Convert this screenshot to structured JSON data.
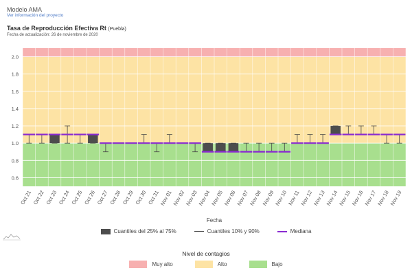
{
  "header": {
    "app_title": "Modelo AMA",
    "project_link": "Ver información del proyecto",
    "chart_title": "Tasa de Reproducción Efectiva Rt",
    "chart_region": "(Puebla)",
    "update_date": "Fecha de actualización: 26 de noviembre de 2020"
  },
  "chart_data": {
    "type": "boxplot",
    "title": "Tasa de Reproducción Efectiva Rt",
    "xlabel": "Fecha",
    "ylabel": "",
    "ylim": [
      0.5,
      2.1
    ],
    "yticks": [
      0.6,
      0.8,
      1.0,
      1.2,
      1.4,
      1.6,
      1.8,
      2.0
    ],
    "grid": true,
    "categories": [
      "Oct 21",
      "Oct 22",
      "Oct 23",
      "Oct 24",
      "Oct 25",
      "Oct 26",
      "Oct 27",
      "Oct 28",
      "Oct 29",
      "Oct 30",
      "Oct 31",
      "Nov 01",
      "Nov 02",
      "Nov 03",
      "Nov 04",
      "Nov 05",
      "Nov 06",
      "Nov 07",
      "Nov 08",
      "Nov 09",
      "Nov 10",
      "Nov 11",
      "Nov 12",
      "Nov 13",
      "Nov 14",
      "Nov 15",
      "Nov 16",
      "Nov 17",
      "Nov 18",
      "Nov 19"
    ],
    "median": [
      1.1,
      1.1,
      1.1,
      1.1,
      1.1,
      1.1,
      1.0,
      1.0,
      1.0,
      1.0,
      1.0,
      1.0,
      1.0,
      1.0,
      0.9,
      0.9,
      0.9,
      0.9,
      0.9,
      0.9,
      0.9,
      1.0,
      1.0,
      1.0,
      1.1,
      1.1,
      1.1,
      1.1,
      1.1,
      1.1
    ],
    "q25": [
      1.1,
      1.1,
      1.0,
      1.1,
      1.1,
      1.0,
      1.0,
      1.0,
      1.0,
      1.0,
      1.0,
      1.0,
      1.0,
      1.0,
      0.9,
      0.9,
      0.9,
      0.9,
      0.9,
      0.9,
      0.9,
      1.0,
      1.0,
      1.0,
      1.1,
      1.1,
      1.1,
      1.1,
      1.1,
      1.1
    ],
    "q75": [
      1.1,
      1.1,
      1.1,
      1.1,
      1.1,
      1.1,
      1.0,
      1.0,
      1.0,
      1.0,
      1.0,
      1.0,
      1.0,
      1.0,
      1.0,
      1.0,
      1.0,
      0.9,
      0.9,
      0.9,
      0.9,
      1.0,
      1.0,
      1.0,
      1.2,
      1.1,
      1.1,
      1.1,
      1.1,
      1.1
    ],
    "p10": [
      1.0,
      1.0,
      1.0,
      1.0,
      1.0,
      1.0,
      0.9,
      1.0,
      1.0,
      1.0,
      0.9,
      1.0,
      1.0,
      0.9,
      0.9,
      0.9,
      0.9,
      0.9,
      0.9,
      0.9,
      0.9,
      1.0,
      1.0,
      1.0,
      1.1,
      1.1,
      1.1,
      1.1,
      1.0,
      1.0
    ],
    "p90": [
      1.1,
      1.1,
      1.1,
      1.2,
      1.1,
      1.1,
      1.0,
      1.0,
      1.0,
      1.1,
      1.0,
      1.1,
      1.0,
      1.0,
      1.0,
      1.0,
      1.0,
      1.0,
      1.0,
      1.0,
      1.0,
      1.1,
      1.1,
      1.1,
      1.2,
      1.2,
      1.2,
      1.2,
      1.1,
      1.1
    ],
    "bands": [
      {
        "name": "Bajo",
        "from": 0.5,
        "to": 1.0,
        "color": "#a8df8e"
      },
      {
        "name": "Alto",
        "from": 1.0,
        "to": 2.0,
        "color": "#fde3a4"
      },
      {
        "name": "Muy alto",
        "from": 2.0,
        "to": 2.1,
        "color": "#f7b0b0"
      }
    ],
    "legend_position": "bottom",
    "colors": {
      "box": "#4d4d4d",
      "whisker": "#444444",
      "median": "#8a2bd1",
      "grid": "#ffffff",
      "axis_text": "#555555"
    }
  },
  "legend": {
    "box": "Cuantiles del 25% al 75%",
    "whisker": "Cuantiles 10% y 90%",
    "median": "Mediana"
  },
  "levels": {
    "title": "Nivel de contagios",
    "items": [
      {
        "label": "Muy alto",
        "color": "#f7b0b0"
      },
      {
        "label": "Alto",
        "color": "#fde3a4"
      },
      {
        "label": "Bajo",
        "color": "#a8df8e"
      }
    ]
  }
}
